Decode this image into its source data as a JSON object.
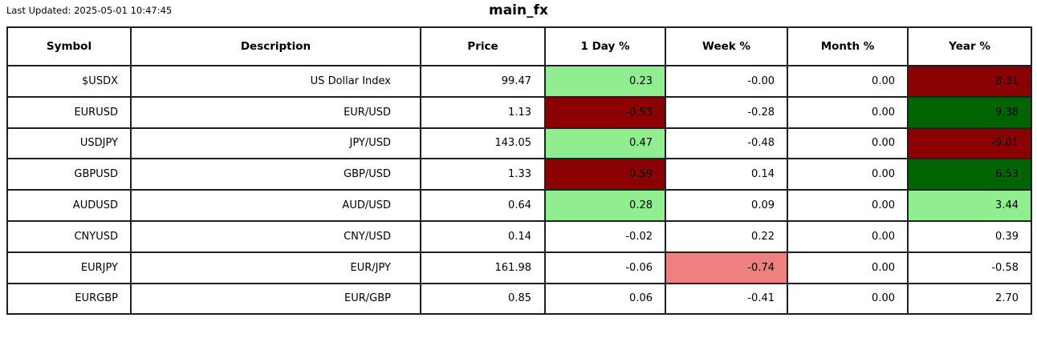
{
  "header": {
    "last_updated": "Last Updated: 2025-05-01 10:47:45",
    "title": "main_fx"
  },
  "colors": {
    "strong_up": "#006400",
    "up": "#90EE90",
    "down": "#F08080",
    "strong_down": "#8B0000",
    "cell_background": "#ffffff",
    "border": "#1f1f1f",
    "text": "#000000"
  },
  "chart_data": {
    "type": "table",
    "title": "main_fx",
    "columns": [
      "Symbol",
      "Description",
      "Price",
      "1 Day %",
      "Week %",
      "Month %",
      "Year %"
    ],
    "rows": [
      [
        {
          "v": "$USDX"
        },
        {
          "v": "US Dollar Index"
        },
        {
          "v": "99.47"
        },
        {
          "v": "0.23",
          "bg": "up"
        },
        {
          "v": "-0.00"
        },
        {
          "v": "0.00"
        },
        {
          "v": "-8.31",
          "bg": "strong_down"
        }
      ],
      [
        {
          "v": "EURUSD"
        },
        {
          "v": "EUR/USD"
        },
        {
          "v": "1.13"
        },
        {
          "v": "-0.53",
          "bg": "strong_down"
        },
        {
          "v": "-0.28"
        },
        {
          "v": "0.00"
        },
        {
          "v": "9.38",
          "bg": "strong_up"
        }
      ],
      [
        {
          "v": "USDJPY"
        },
        {
          "v": "JPY/USD"
        },
        {
          "v": "143.05"
        },
        {
          "v": "0.47",
          "bg": "up"
        },
        {
          "v": "-0.48"
        },
        {
          "v": "0.00"
        },
        {
          "v": "-9.01",
          "bg": "strong_down"
        }
      ],
      [
        {
          "v": "GBPUSD"
        },
        {
          "v": "GBP/USD"
        },
        {
          "v": "1.33"
        },
        {
          "v": "-0.59",
          "bg": "strong_down"
        },
        {
          "v": "0.14"
        },
        {
          "v": "0.00"
        },
        {
          "v": "6.53",
          "bg": "strong_up"
        }
      ],
      [
        {
          "v": "AUDUSD"
        },
        {
          "v": "AUD/USD"
        },
        {
          "v": "0.64"
        },
        {
          "v": "0.28",
          "bg": "up"
        },
        {
          "v": "0.09"
        },
        {
          "v": "0.00"
        },
        {
          "v": "3.44",
          "bg": "up"
        }
      ],
      [
        {
          "v": "CNYUSD"
        },
        {
          "v": "CNY/USD"
        },
        {
          "v": "0.14"
        },
        {
          "v": "-0.02"
        },
        {
          "v": "0.22"
        },
        {
          "v": "0.00"
        },
        {
          "v": "0.39"
        }
      ],
      [
        {
          "v": "EURJPY"
        },
        {
          "v": "EUR/JPY"
        },
        {
          "v": "161.98"
        },
        {
          "v": "-0.06"
        },
        {
          "v": "-0.74",
          "bg": "down"
        },
        {
          "v": "0.00"
        },
        {
          "v": "-0.58"
        }
      ],
      [
        {
          "v": "EURGBP"
        },
        {
          "v": "EUR/GBP"
        },
        {
          "v": "0.85"
        },
        {
          "v": "0.06"
        },
        {
          "v": "-0.41"
        },
        {
          "v": "0.00"
        },
        {
          "v": "2.70"
        }
      ]
    ]
  }
}
